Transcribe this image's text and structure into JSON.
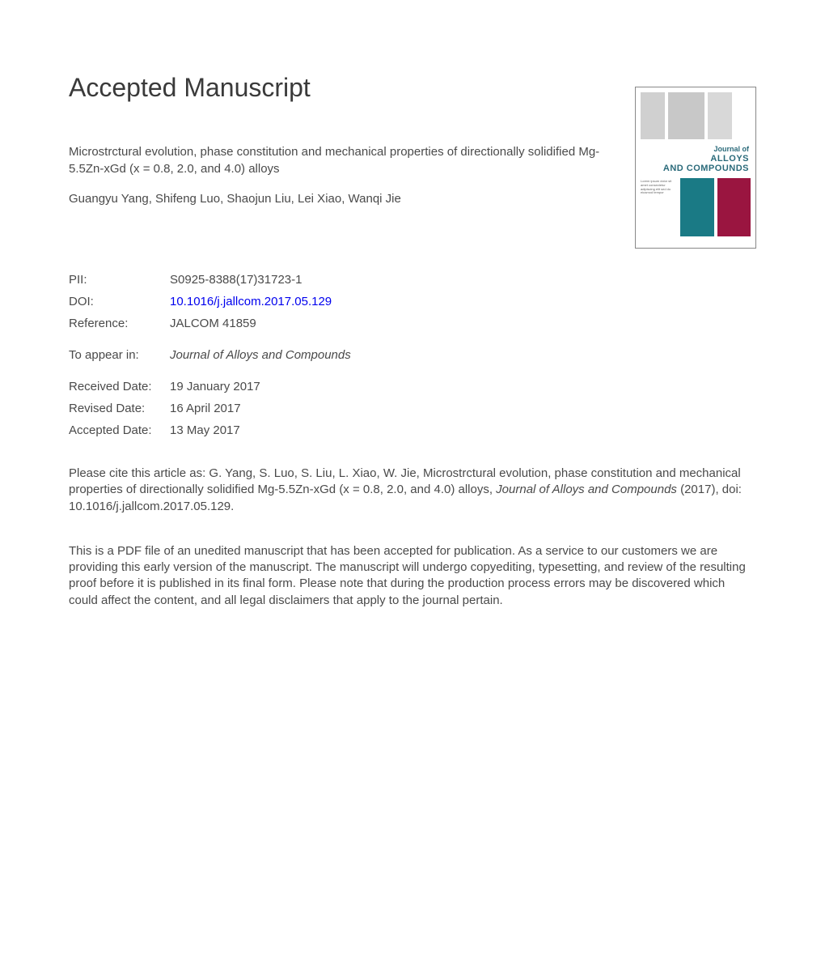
{
  "heading": "Accepted Manuscript",
  "article": {
    "title": "Microstrctural evolution, phase constitution and mechanical properties of directionally solidified Mg-5.5Zn-xGd (x = 0.8, 2.0, and 4.0) alloys",
    "authors": "Guangyu Yang, Shifeng Luo, Shaojun Liu, Lei Xiao, Wanqi Jie"
  },
  "cover": {
    "line1": "Journal of",
    "line2": "ALLOYS",
    "line3": "AND COMPOUNDS",
    "teal_color": "#1a7a85",
    "maroon_color": "#9a1540"
  },
  "meta": {
    "pii_label": "PII:",
    "pii_value": "S0925-8388(17)31723-1",
    "doi_label": "DOI:",
    "doi_value": "10.1016/j.jallcom.2017.05.129",
    "ref_label": "Reference:",
    "ref_value": "JALCOM 41859",
    "appear_label": "To appear in:",
    "appear_value": "Journal of Alloys and Compounds",
    "received_label": "Received Date:",
    "received_value": "19 January 2017",
    "revised_label": "Revised Date:",
    "revised_value": "16 April 2017",
    "accepted_label": "Accepted Date:",
    "accepted_value": "13 May 2017"
  },
  "citation": {
    "prefix": "Please cite this article as: G. Yang, S. Luo, S. Liu, L. Xiao, W. Jie, Microstrctural evolution, phase constitution and mechanical properties of directionally solidified Mg-5.5Zn-xGd (x = 0.8, 2.0, and 4.0) alloys, ",
    "journal": "Journal of Alloys and Compounds",
    "suffix": " (2017), doi: 10.1016/j.jallcom.2017.05.129."
  },
  "disclaimer": "This is a PDF file of an unedited manuscript that has been accepted for publication. As a service to our customers we are providing this early version of the manuscript. The manuscript will undergo copyediting, typesetting, and review of the resulting proof before it is published in its final form. Please note that during the production process errors may be discovered which could affect the content, and all legal disclaimers that apply to the journal pertain."
}
